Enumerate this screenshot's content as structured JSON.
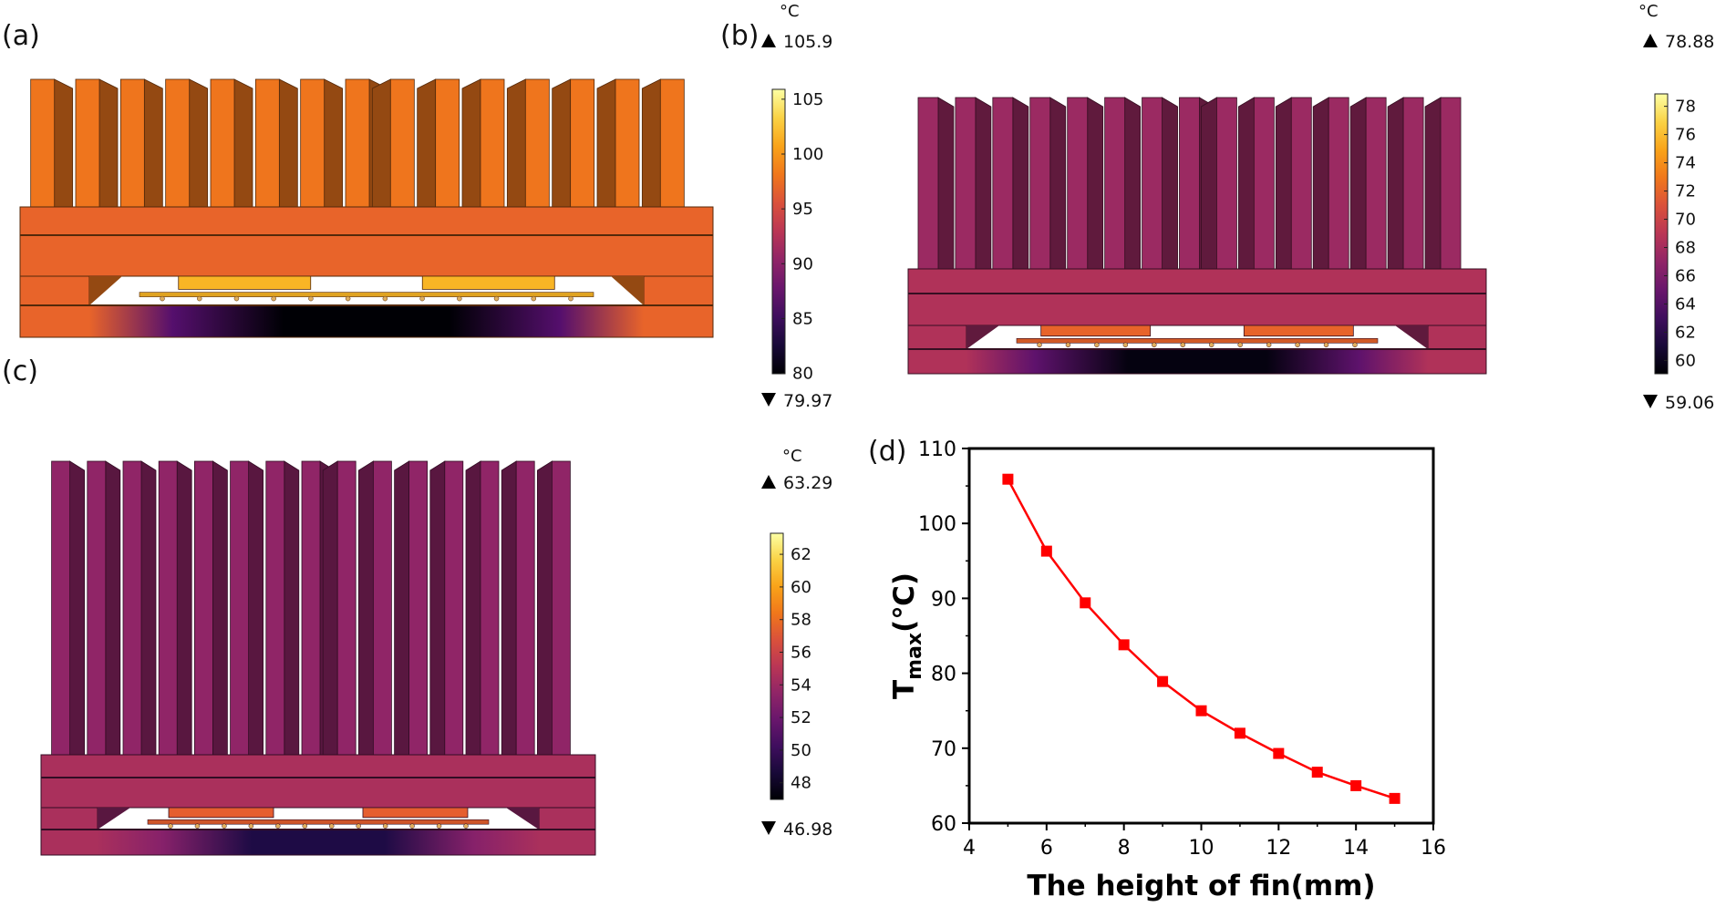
{
  "panels": {
    "a": {
      "label": "(a)",
      "unit": "°C",
      "max_text": "105.9",
      "min_text": "79.97",
      "ticks": [
        80,
        85,
        90,
        95,
        100,
        105
      ],
      "range": [
        79.97,
        105.9
      ],
      "fin_value": 98,
      "top_value": 97,
      "base_value": 80
    },
    "b": {
      "label": "(b)",
      "unit": "°C",
      "max_text": "78.88",
      "min_text": "59.06",
      "ticks": [
        60,
        62,
        64,
        66,
        68,
        70,
        72,
        74,
        76,
        78
      ],
      "range": [
        59.06,
        78.88
      ],
      "fin_value": 67.5,
      "top_value": 68.5,
      "base_value": 59.5
    },
    "c": {
      "label": "(c)",
      "unit": "°C",
      "max_text": "63.29",
      "min_text": "46.98",
      "ticks": [
        48,
        50,
        52,
        54,
        56,
        58,
        60,
        62
      ],
      "range": [
        46.98,
        63.29
      ],
      "fin_value": 53.5,
      "top_value": 54.5,
      "base_value": 49
    },
    "d": {
      "label": "(d)"
    }
  },
  "chart_data": {
    "type": "line",
    "xlabel": "The height of fin(mm)",
    "ylabel_main": "T",
    "ylabel_sub": "max",
    "ylabel_unit": "(℃)",
    "xlim": [
      4,
      16
    ],
    "ylim": [
      60,
      110
    ],
    "xticks": [
      4,
      6,
      8,
      10,
      12,
      14,
      16
    ],
    "yticks": [
      60,
      70,
      80,
      90,
      100,
      110
    ],
    "x": [
      5,
      6,
      7,
      8,
      9,
      10,
      11,
      12,
      13,
      14,
      15
    ],
    "y": [
      105.9,
      96.3,
      89.4,
      83.8,
      78.9,
      75.0,
      72.0,
      69.3,
      66.8,
      65.0,
      63.3
    ],
    "color": "#ff0000"
  }
}
